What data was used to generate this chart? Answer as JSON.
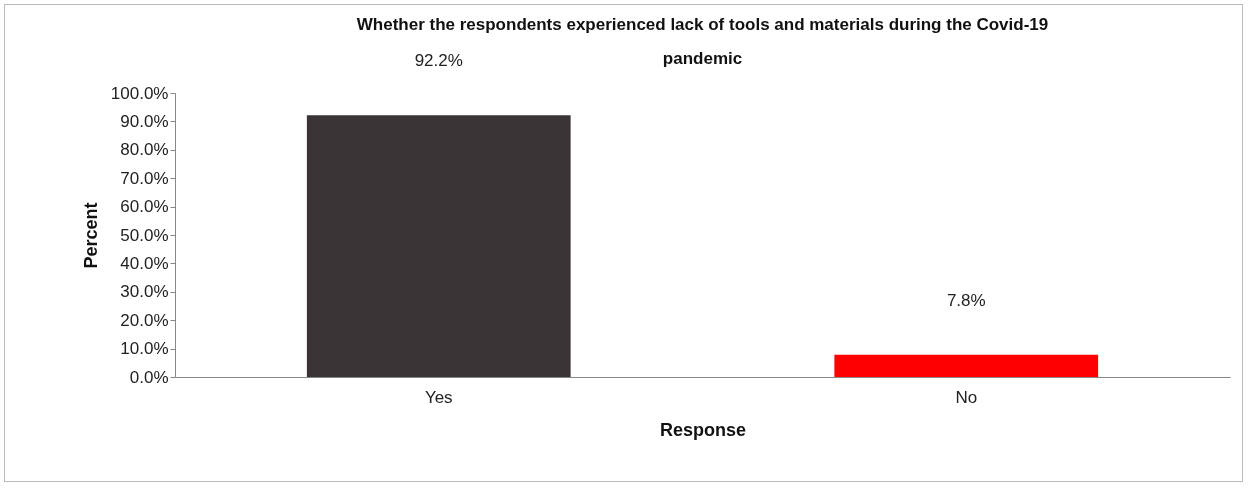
{
  "chart_data": {
    "type": "bar",
    "title": "Whether the respondents experienced lack of tools and materials during the Covid-19 pandemic",
    "xlabel": "Response",
    "ylabel": "Percent",
    "categories": [
      "Yes",
      "No"
    ],
    "values": [
      92.2,
      7.8
    ],
    "colors": [
      "#3a3436",
      "#ff0000"
    ],
    "value_labels": [
      "92.2%",
      "7.8%"
    ],
    "ylim": [
      0,
      100
    ],
    "yticks": [
      {
        "value": 0,
        "label": "0.0%"
      },
      {
        "value": 10,
        "label": "10.0%"
      },
      {
        "value": 20,
        "label": "20.0%"
      },
      {
        "value": 30,
        "label": "30.0%"
      },
      {
        "value": 40,
        "label": "40.0%"
      },
      {
        "value": 50,
        "label": "50.0%"
      },
      {
        "value": 60,
        "label": "60.0%"
      },
      {
        "value": 70,
        "label": "70.0%"
      },
      {
        "value": 80,
        "label": "80.0%"
      },
      {
        "value": 90,
        "label": "90.0%"
      },
      {
        "value": 100,
        "label": "100.0%"
      }
    ],
    "grid": false
  }
}
